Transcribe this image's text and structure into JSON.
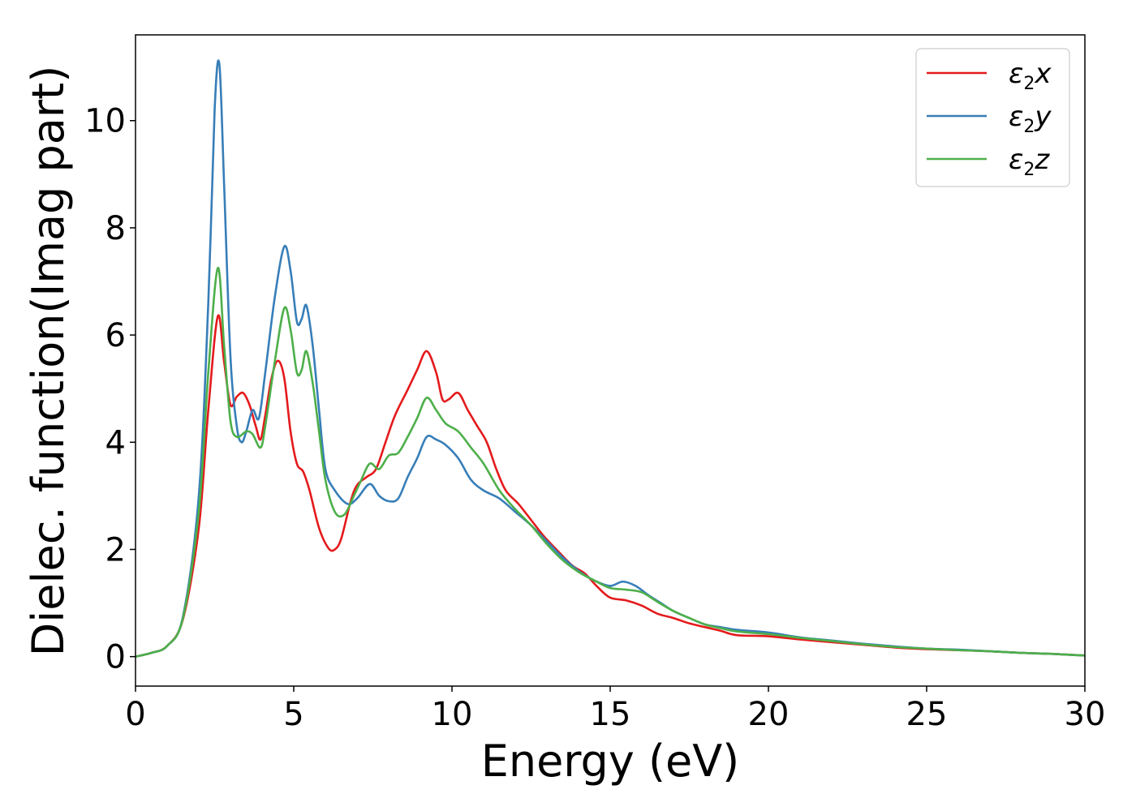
{
  "chart_data": {
    "type": "line",
    "title": "",
    "xlabel": "Energy (eV)",
    "ylabel": "Dielec. function(Imag part)",
    "xlim": [
      0,
      30
    ],
    "ylim": [
      -0.55,
      11.6
    ],
    "xticks": [
      "0",
      "5",
      "10",
      "15",
      "20",
      "25",
      "30"
    ],
    "yticks": [
      "0",
      "2",
      "4",
      "6",
      "8",
      "10"
    ],
    "grid": false,
    "legend_position": "top-right",
    "series": [
      {
        "name": "ε2x",
        "base": "ε",
        "sub": "2",
        "comp": "x",
        "color": "#e41a1c",
        "points": [
          [
            0,
            0
          ],
          [
            0.5,
            0.07
          ],
          [
            1.0,
            0.2
          ],
          [
            1.5,
            0.7
          ],
          [
            2.0,
            2.4
          ],
          [
            2.3,
            4.6
          ],
          [
            2.6,
            6.35
          ],
          [
            2.8,
            5.5
          ],
          [
            3.0,
            4.7
          ],
          [
            3.2,
            4.85
          ],
          [
            3.4,
            4.92
          ],
          [
            3.6,
            4.7
          ],
          [
            3.8,
            4.3
          ],
          [
            3.95,
            4.05
          ],
          [
            4.1,
            4.5
          ],
          [
            4.3,
            5.2
          ],
          [
            4.5,
            5.52
          ],
          [
            4.7,
            5.2
          ],
          [
            4.9,
            4.2
          ],
          [
            5.1,
            3.6
          ],
          [
            5.3,
            3.45
          ],
          [
            5.5,
            3.1
          ],
          [
            5.8,
            2.4
          ],
          [
            6.1,
            2.02
          ],
          [
            6.3,
            2.0
          ],
          [
            6.5,
            2.2
          ],
          [
            6.8,
            2.9
          ],
          [
            7.0,
            3.2
          ],
          [
            7.3,
            3.35
          ],
          [
            7.6,
            3.5
          ],
          [
            7.9,
            4.0
          ],
          [
            8.2,
            4.5
          ],
          [
            8.6,
            4.98
          ],
          [
            8.9,
            5.35
          ],
          [
            9.2,
            5.7
          ],
          [
            9.5,
            5.3
          ],
          [
            9.7,
            4.8
          ],
          [
            9.9,
            4.8
          ],
          [
            10.2,
            4.92
          ],
          [
            10.5,
            4.6
          ],
          [
            10.8,
            4.3
          ],
          [
            11.1,
            4.0
          ],
          [
            11.4,
            3.5
          ],
          [
            11.7,
            3.1
          ],
          [
            12.1,
            2.85
          ],
          [
            12.5,
            2.55
          ],
          [
            12.9,
            2.25
          ],
          [
            13.3,
            2.0
          ],
          [
            13.8,
            1.7
          ],
          [
            14.2,
            1.55
          ],
          [
            14.6,
            1.3
          ],
          [
            15.0,
            1.1
          ],
          [
            15.5,
            1.05
          ],
          [
            16.0,
            0.95
          ],
          [
            16.5,
            0.8
          ],
          [
            17.0,
            0.72
          ],
          [
            17.5,
            0.62
          ],
          [
            18.0,
            0.55
          ],
          [
            18.5,
            0.48
          ],
          [
            19.0,
            0.4
          ],
          [
            20.0,
            0.38
          ],
          [
            21.0,
            0.32
          ],
          [
            22.0,
            0.27
          ],
          [
            23.0,
            0.22
          ],
          [
            24.0,
            0.17
          ],
          [
            25.0,
            0.14
          ],
          [
            26.0,
            0.12
          ],
          [
            27.0,
            0.1
          ],
          [
            28.0,
            0.07
          ],
          [
            29.0,
            0.05
          ],
          [
            30.0,
            0.02
          ]
        ]
      },
      {
        "name": "ε2y",
        "base": "ε",
        "sub": "2",
        "comp": "y",
        "color": "#377eb8",
        "points": [
          [
            0,
            0
          ],
          [
            0.5,
            0.07
          ],
          [
            1.0,
            0.2
          ],
          [
            1.5,
            0.75
          ],
          [
            2.0,
            3.0
          ],
          [
            2.3,
            6.6
          ],
          [
            2.5,
            10.2
          ],
          [
            2.65,
            11.05
          ],
          [
            2.8,
            8.8
          ],
          [
            3.0,
            5.6
          ],
          [
            3.2,
            4.3
          ],
          [
            3.35,
            4.0
          ],
          [
            3.5,
            4.2
          ],
          [
            3.7,
            4.6
          ],
          [
            3.9,
            4.45
          ],
          [
            4.1,
            5.3
          ],
          [
            4.4,
            6.7
          ],
          [
            4.7,
            7.65
          ],
          [
            4.9,
            7.2
          ],
          [
            5.1,
            6.25
          ],
          [
            5.25,
            6.3
          ],
          [
            5.4,
            6.55
          ],
          [
            5.6,
            5.8
          ],
          [
            5.8,
            4.6
          ],
          [
            6.0,
            3.5
          ],
          [
            6.3,
            3.1
          ],
          [
            6.7,
            2.85
          ],
          [
            7.0,
            2.95
          ],
          [
            7.4,
            3.22
          ],
          [
            7.7,
            3.0
          ],
          [
            8.0,
            2.9
          ],
          [
            8.3,
            2.95
          ],
          [
            8.6,
            3.35
          ],
          [
            8.9,
            3.7
          ],
          [
            9.2,
            4.1
          ],
          [
            9.5,
            4.05
          ],
          [
            9.8,
            3.95
          ],
          [
            10.2,
            3.7
          ],
          [
            10.6,
            3.3
          ],
          [
            11.0,
            3.1
          ],
          [
            11.5,
            2.95
          ],
          [
            12.0,
            2.7
          ],
          [
            12.5,
            2.45
          ],
          [
            13.0,
            2.15
          ],
          [
            13.5,
            1.85
          ],
          [
            14.0,
            1.6
          ],
          [
            14.5,
            1.42
          ],
          [
            15.0,
            1.32
          ],
          [
            15.4,
            1.4
          ],
          [
            15.8,
            1.32
          ],
          [
            16.2,
            1.15
          ],
          [
            16.6,
            1.0
          ],
          [
            17.0,
            0.85
          ],
          [
            17.5,
            0.72
          ],
          [
            18.0,
            0.6
          ],
          [
            18.5,
            0.55
          ],
          [
            19.0,
            0.5
          ],
          [
            20.0,
            0.45
          ],
          [
            21.0,
            0.36
          ],
          [
            22.0,
            0.3
          ],
          [
            23.0,
            0.24
          ],
          [
            24.0,
            0.19
          ],
          [
            25.0,
            0.15
          ],
          [
            26.0,
            0.13
          ],
          [
            27.0,
            0.1
          ],
          [
            28.0,
            0.07
          ],
          [
            29.0,
            0.05
          ],
          [
            30.0,
            0.02
          ]
        ]
      },
      {
        "name": "ε2z",
        "base": "ε",
        "sub": "2",
        "comp": "z",
        "color": "#4daf4a",
        "points": [
          [
            0,
            0
          ],
          [
            0.5,
            0.07
          ],
          [
            1.0,
            0.2
          ],
          [
            1.5,
            0.72
          ],
          [
            2.0,
            2.7
          ],
          [
            2.3,
            5.3
          ],
          [
            2.6,
            7.25
          ],
          [
            2.8,
            5.8
          ],
          [
            3.0,
            4.4
          ],
          [
            3.2,
            4.1
          ],
          [
            3.5,
            4.2
          ],
          [
            3.7,
            4.15
          ],
          [
            3.95,
            3.9
          ],
          [
            4.1,
            4.3
          ],
          [
            4.4,
            5.5
          ],
          [
            4.7,
            6.5
          ],
          [
            4.9,
            6.1
          ],
          [
            5.1,
            5.3
          ],
          [
            5.25,
            5.35
          ],
          [
            5.4,
            5.7
          ],
          [
            5.6,
            5.1
          ],
          [
            5.8,
            4.2
          ],
          [
            6.0,
            3.3
          ],
          [
            6.3,
            2.7
          ],
          [
            6.6,
            2.65
          ],
          [
            6.9,
            3.0
          ],
          [
            7.1,
            3.25
          ],
          [
            7.4,
            3.6
          ],
          [
            7.7,
            3.5
          ],
          [
            8.0,
            3.75
          ],
          [
            8.3,
            3.8
          ],
          [
            8.6,
            4.1
          ],
          [
            8.9,
            4.45
          ],
          [
            9.2,
            4.83
          ],
          [
            9.5,
            4.6
          ],
          [
            9.8,
            4.35
          ],
          [
            10.2,
            4.2
          ],
          [
            10.6,
            3.9
          ],
          [
            11.0,
            3.6
          ],
          [
            11.5,
            3.1
          ],
          [
            12.0,
            2.75
          ],
          [
            12.5,
            2.45
          ],
          [
            13.0,
            2.1
          ],
          [
            13.5,
            1.8
          ],
          [
            14.0,
            1.58
          ],
          [
            14.5,
            1.42
          ],
          [
            15.0,
            1.28
          ],
          [
            15.5,
            1.25
          ],
          [
            16.0,
            1.2
          ],
          [
            16.5,
            1.02
          ],
          [
            17.0,
            0.85
          ],
          [
            17.5,
            0.72
          ],
          [
            18.0,
            0.6
          ],
          [
            18.5,
            0.53
          ],
          [
            19.0,
            0.47
          ],
          [
            20.0,
            0.42
          ],
          [
            21.0,
            0.35
          ],
          [
            22.0,
            0.29
          ],
          [
            23.0,
            0.23
          ],
          [
            24.0,
            0.18
          ],
          [
            25.0,
            0.15
          ],
          [
            26.0,
            0.12
          ],
          [
            27.0,
            0.1
          ],
          [
            28.0,
            0.07
          ],
          [
            29.0,
            0.05
          ],
          [
            30.0,
            0.02
          ]
        ]
      }
    ]
  }
}
